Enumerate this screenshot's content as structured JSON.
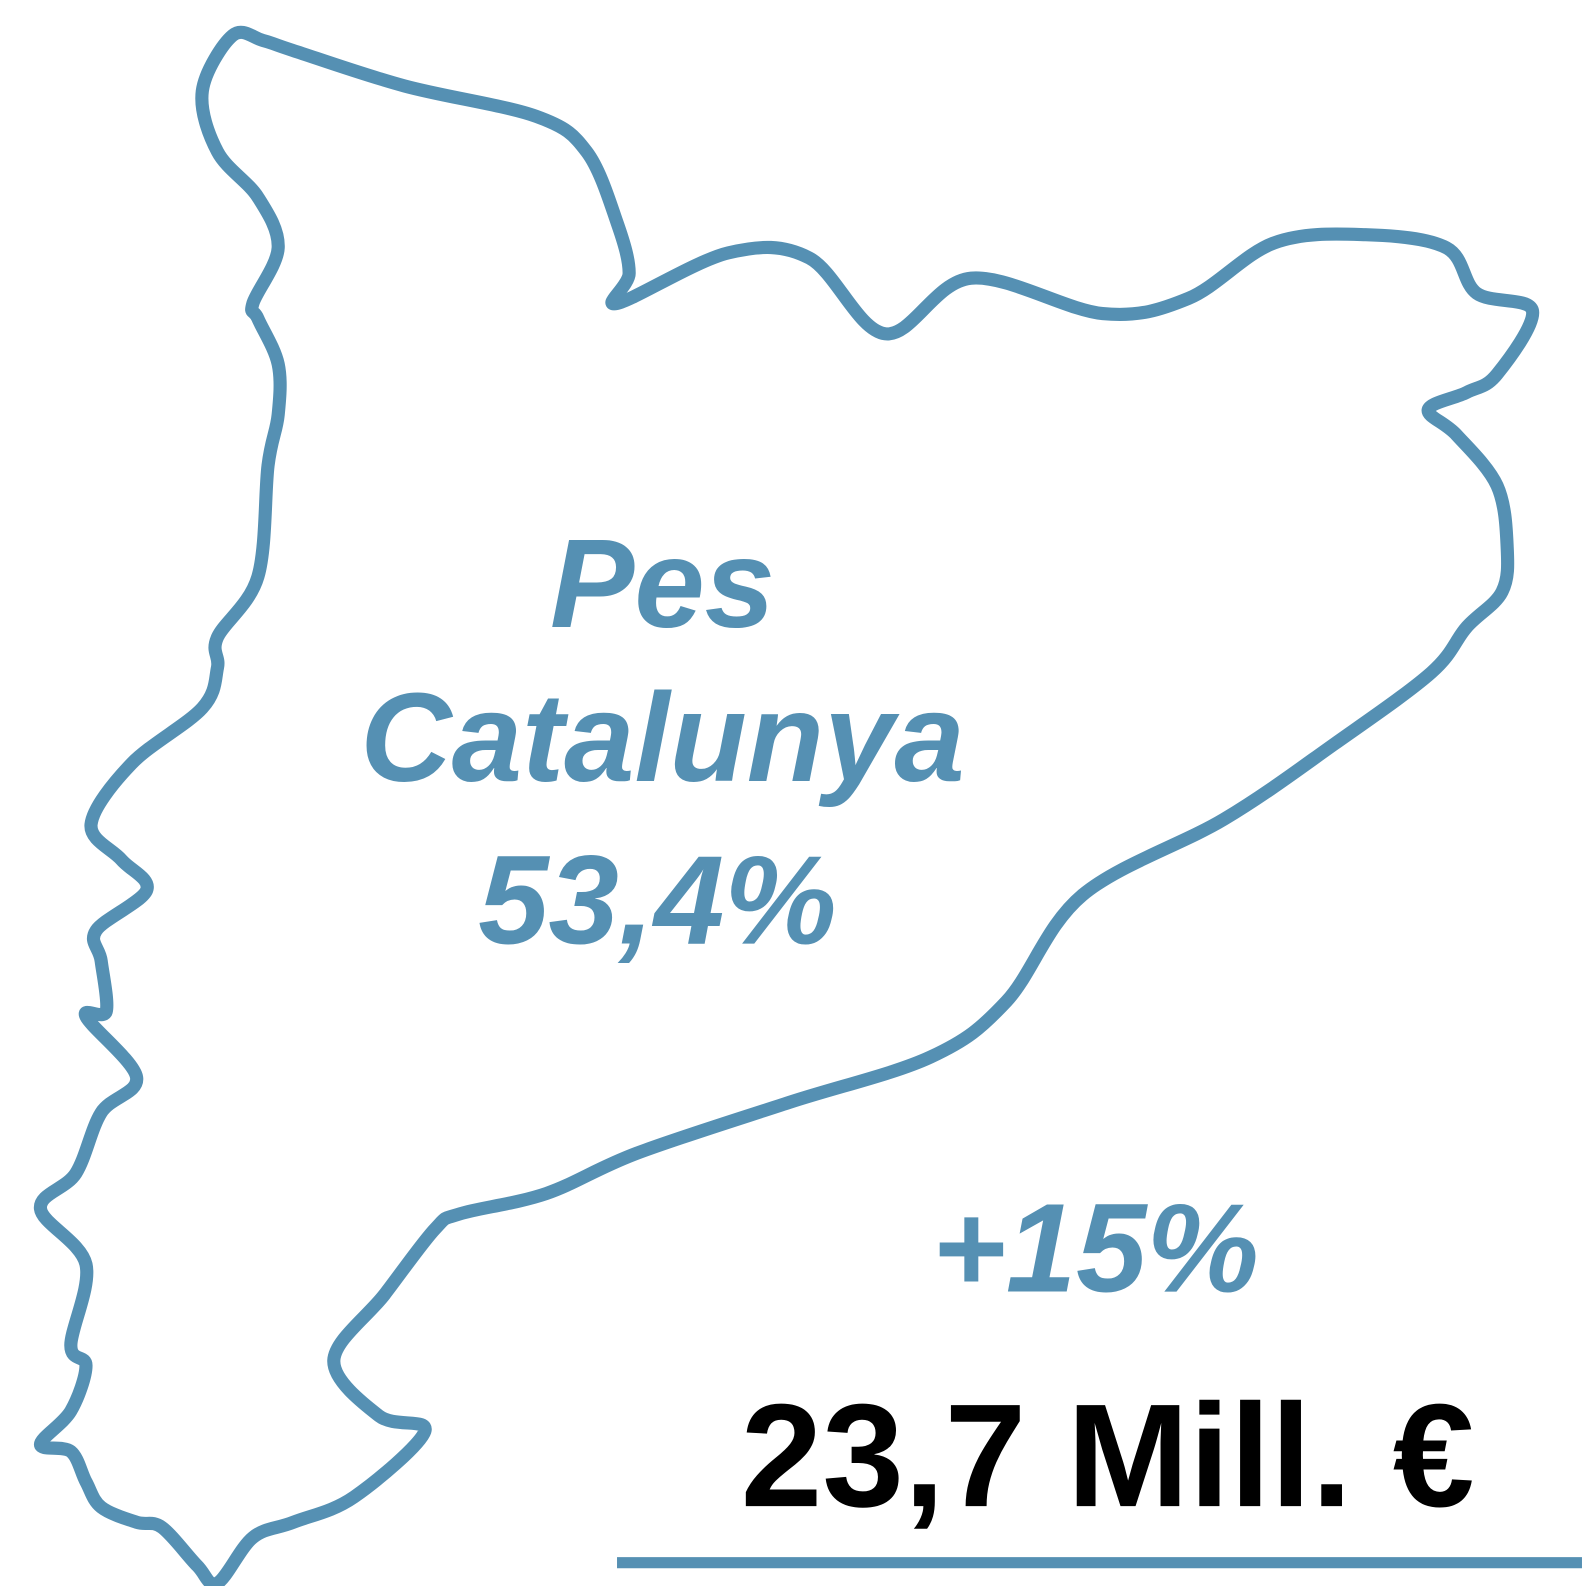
{
  "label": [
    "Pes",
    "Catalunya"
  ],
  "share": "53,4%",
  "growth": "+15%",
  "amount": "23,7 Mill. €"
}
